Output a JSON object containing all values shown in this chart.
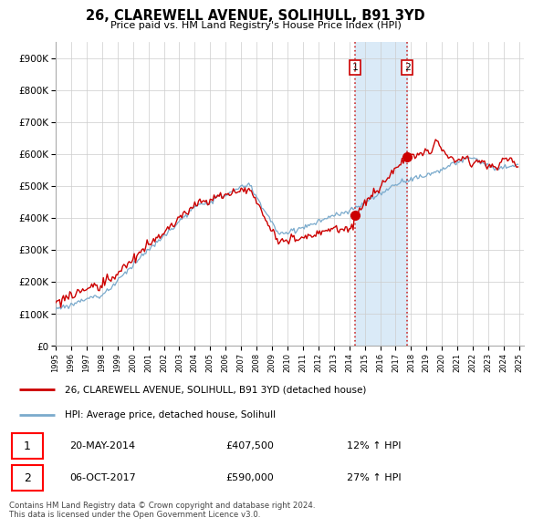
{
  "title": "26, CLAREWELL AVENUE, SOLIHULL, B91 3YD",
  "subtitle": "Price paid vs. HM Land Registry's House Price Index (HPI)",
  "ylim": [
    0,
    950000
  ],
  "yticks": [
    0,
    100000,
    200000,
    300000,
    400000,
    500000,
    600000,
    700000,
    800000,
    900000
  ],
  "ytick_labels": [
    "£0",
    "£100K",
    "£200K",
    "£300K",
    "£400K",
    "£500K",
    "£600K",
    "£700K",
    "£800K",
    "£900K"
  ],
  "line1_color": "#cc0000",
  "line2_color": "#7aaacc",
  "shaded_color": "#daeaf7",
  "transaction1_year": 2014.375,
  "transaction1_price": 407500,
  "transaction2_year": 2017.75,
  "transaction2_price": 590000,
  "legend_entry1": "26, CLAREWELL AVENUE, SOLIHULL, B91 3YD (detached house)",
  "legend_entry2": "HPI: Average price, detached house, Solihull",
  "table_row1_num": "1",
  "table_row1_date": "20-MAY-2014",
  "table_row1_price": "£407,500",
  "table_row1_hpi": "12% ↑ HPI",
  "table_row2_num": "2",
  "table_row2_date": "06-OCT-2017",
  "table_row2_price": "£590,000",
  "table_row2_hpi": "27% ↑ HPI",
  "footnote": "Contains HM Land Registry data © Crown copyright and database right 2024.\nThis data is licensed under the Open Government Licence v3.0.",
  "background_color": "#ffffff",
  "plot_bg_color": "#ffffff",
  "grid_color": "#cccccc",
  "start_year": 1995,
  "end_year": 2025
}
